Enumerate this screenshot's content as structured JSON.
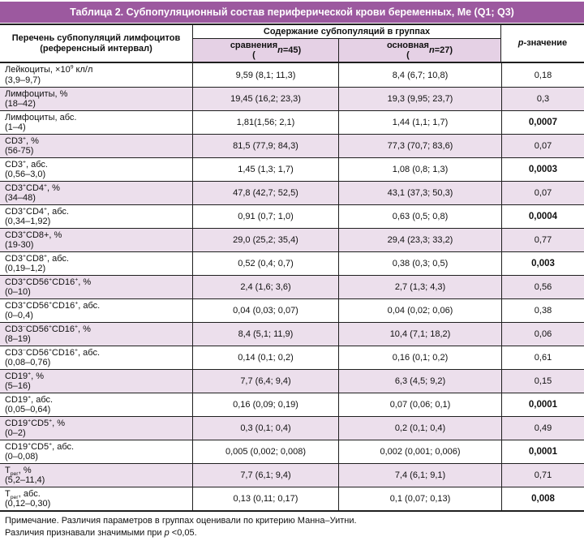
{
  "chart_data": {
    "type": "table",
    "title": "Таблица 2. Субпопуляционный состав периферической крови беременных, Ме (Q1; Q3)",
    "columns": {
      "param_header": "Перечень субпопуляций лимфоцитов\n(референсный интервал)",
      "group_header": "Содержание субпопуляций в группах",
      "subgroup_1": "сравнения\n(*{n}=45)",
      "subgroup_2": "основная\n(*{n}=27)",
      "p_header": "*{p}-значение"
    },
    "rows": [
      {
        "label": "Лейкоциты, ×10^{9} кл/л",
        "ref": "(3,9–9,7)",
        "comparison": "9,59 (8,1; 11,3)",
        "main": "8,4 (6,7; 10,8)",
        "p": "0,18",
        "significant": false,
        "shaded": false
      },
      {
        "label": "Лимфоциты, %",
        "ref": "(18–42)",
        "comparison": "19,45 (16,2; 23,3)",
        "main": "19,3 (9,95; 23,7)",
        "p": "0,3",
        "significant": false,
        "shaded": true
      },
      {
        "label": "Лимфоциты, абс.",
        "ref": "(1–4)",
        "comparison": "1,81(1,56; 2,1)",
        "main": "1,44 (1,1; 1,7)",
        "p": "0,0007",
        "significant": true,
        "shaded": false
      },
      {
        "label": "CD3^{+}, %",
        "ref": "(56-75)",
        "comparison": "81,5 (77,9; 84,3)",
        "main": "77,3 (70,7; 83,6)",
        "p": "0,07",
        "significant": false,
        "shaded": true
      },
      {
        "label": "CD3^{+}, абс.",
        "ref": "(0,56–3,0)",
        "comparison": "1,45 (1,3; 1,7)",
        "main": "1,08 (0,8; 1,3)",
        "p": "0,0003",
        "significant": true,
        "shaded": false
      },
      {
        "label": "CD3^{+}CD4^{+}, %",
        "ref": "(34–48)",
        "comparison": "47,8 (42,7; 52,5)",
        "main": "43,1 (37,3; 50,3)",
        "p": "0,07",
        "significant": false,
        "shaded": true
      },
      {
        "label": "CD3^{+}CD4^{+}, абс.",
        "ref": "(0,34–1,92)",
        "comparison": "0,91 (0,7; 1,0)",
        "main": "0,63 (0,5; 0,8)",
        "p": "0,0004",
        "significant": true,
        "shaded": false
      },
      {
        "label": "CD3^{+}CD8+, %",
        "ref": "(19-30)",
        "comparison": "29,0 (25,2; 35,4)",
        "main": "29,4 (23,3; 33,2)",
        "p": "0,77",
        "significant": false,
        "shaded": true
      },
      {
        "label": "CD3^{+}CD8^{+}, абс.",
        "ref": "(0,19–1,2)",
        "comparison": "0,52 (0,4; 0,7)",
        "main": "0,38 (0,3; 0,5)",
        "p": "0,003",
        "significant": true,
        "shaded": false
      },
      {
        "label": "CD3^{+}CD56^{+}CD16^{+}, %",
        "ref": "(0–10)",
        "comparison": "2,4 (1,6; 3,6)",
        "main": "2,7 (1,3; 4,3)",
        "p": "0,56",
        "significant": false,
        "shaded": true
      },
      {
        "label": "CD3^{+}CD56^{+}CD16^{+}, абс.",
        "ref": "(0–0,4)",
        "comparison": "0,04 (0,03; 0,07)",
        "main": "0,04 (0,02; 0,06)",
        "p": "0,38",
        "significant": false,
        "shaded": false
      },
      {
        "label": "CD3^{–}CD56^{+}CD16^{+}, %",
        "ref": "(8–19)",
        "comparison": "8,4 (5,1; 11,9)",
        "main": "10,4 (7,1; 18,2)",
        "p": "0,06",
        "significant": false,
        "shaded": true
      },
      {
        "label": "CD3^{–}CD56^{+}CD16^{+}, абс.",
        "ref": "(0,08–0,76)",
        "comparison": "0,14 (0,1; 0,2)",
        "main": "0,16 (0,1; 0,2)",
        "p": "0,61",
        "significant": false,
        "shaded": false
      },
      {
        "label": "CD19^{+}, %",
        "ref": "(5–16)",
        "comparison": "7,7 (6,4; 9,4)",
        "main": "6,3 (4,5; 9,2)",
        "p": "0,15",
        "significant": false,
        "shaded": true
      },
      {
        "label": "CD19^{+}, абс.",
        "ref": "(0,05–0,64)",
        "comparison": "0,16 (0,09; 0,19)",
        "main": "0,07 (0,06; 0,1)",
        "p": "0,0001",
        "significant": true,
        "shaded": false
      },
      {
        "label": "CD19^{+}CD5^{+}, %",
        "ref": "(0–2)",
        "comparison": "0,3 (0,1; 0,4)",
        "main": "0,2 (0,1; 0,4)",
        "p": "0,49",
        "significant": false,
        "shaded": true
      },
      {
        "label": "CD19^{+}CD5^{+}, абс.",
        "ref": "(0–0,08)",
        "comparison": "0,005 (0,002; 0,008)",
        "main": "0,002 (0,001; 0,006)",
        "p": "0,0001",
        "significant": true,
        "shaded": false
      },
      {
        "label": "Т_{рег}, %",
        "ref": "(5,2–11,4)",
        "comparison": "7,7 (6,1; 9,4)",
        "main": "7,4 (6,1; 9,1)",
        "p": "0,71",
        "significant": false,
        "shaded": true
      },
      {
        "label": "Т_{рег}, абс.",
        "ref": "(0,12–0,30)",
        "comparison": "0,13 (0,11; 0,17)",
        "main": "0,1 (0,07; 0,13)",
        "p": "0,008",
        "significant": true,
        "shaded": false
      }
    ],
    "footnotes": [
      "Примечание. Различия параметров в группах оценивали по критерию Манна–Уитни.",
      "Различия признавали значимыми при *{p} <0,05."
    ]
  },
  "colors": {
    "title_bar": "#9c599f",
    "subheader_bg": "#e5d1e5",
    "row_shade": "#ecdfec",
    "border": "#1f1f1f",
    "title_text": "#ffffff"
  }
}
